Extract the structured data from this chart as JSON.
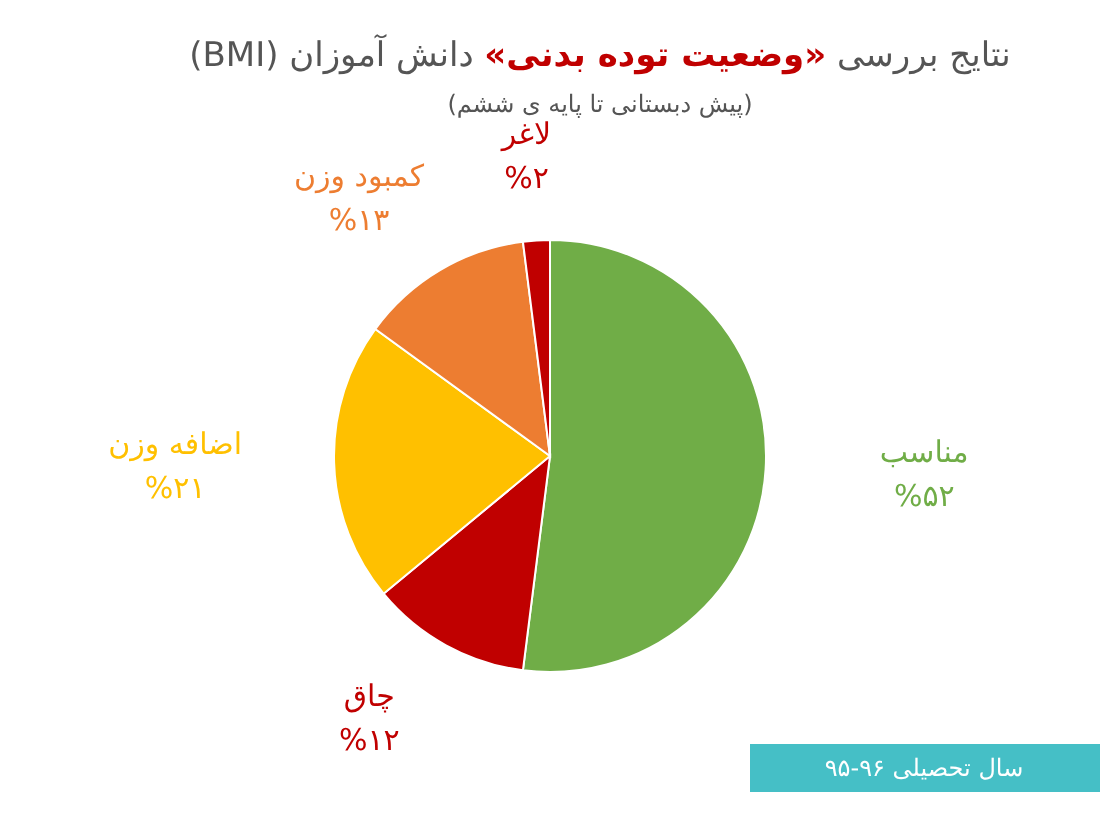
{
  "chart_data": {
    "type": "pie",
    "title": "نتایج بررسی **«وضعیت توده بدنی»** دانش آموزان (BMI)",
    "subtitle": "(پیش دبستانی تا پایه ی ششم)",
    "categories": [
      "مناسب",
      "چاق",
      "اضافه وزن",
      "کمبود وزن",
      "لاغر"
    ],
    "values": [
      52,
      12,
      21,
      13,
      2
    ],
    "colors": [
      "#70ad47",
      "#c00000",
      "#ffc000",
      "#ed7d31",
      "#c00000"
    ],
    "value_labels": [
      "%۵۲",
      "%۱۲",
      "%۲۱",
      "%۱۳",
      "%۲"
    ],
    "annotations": [
      "سال تحصیلی ۹۶-۹۵"
    ]
  }
}
